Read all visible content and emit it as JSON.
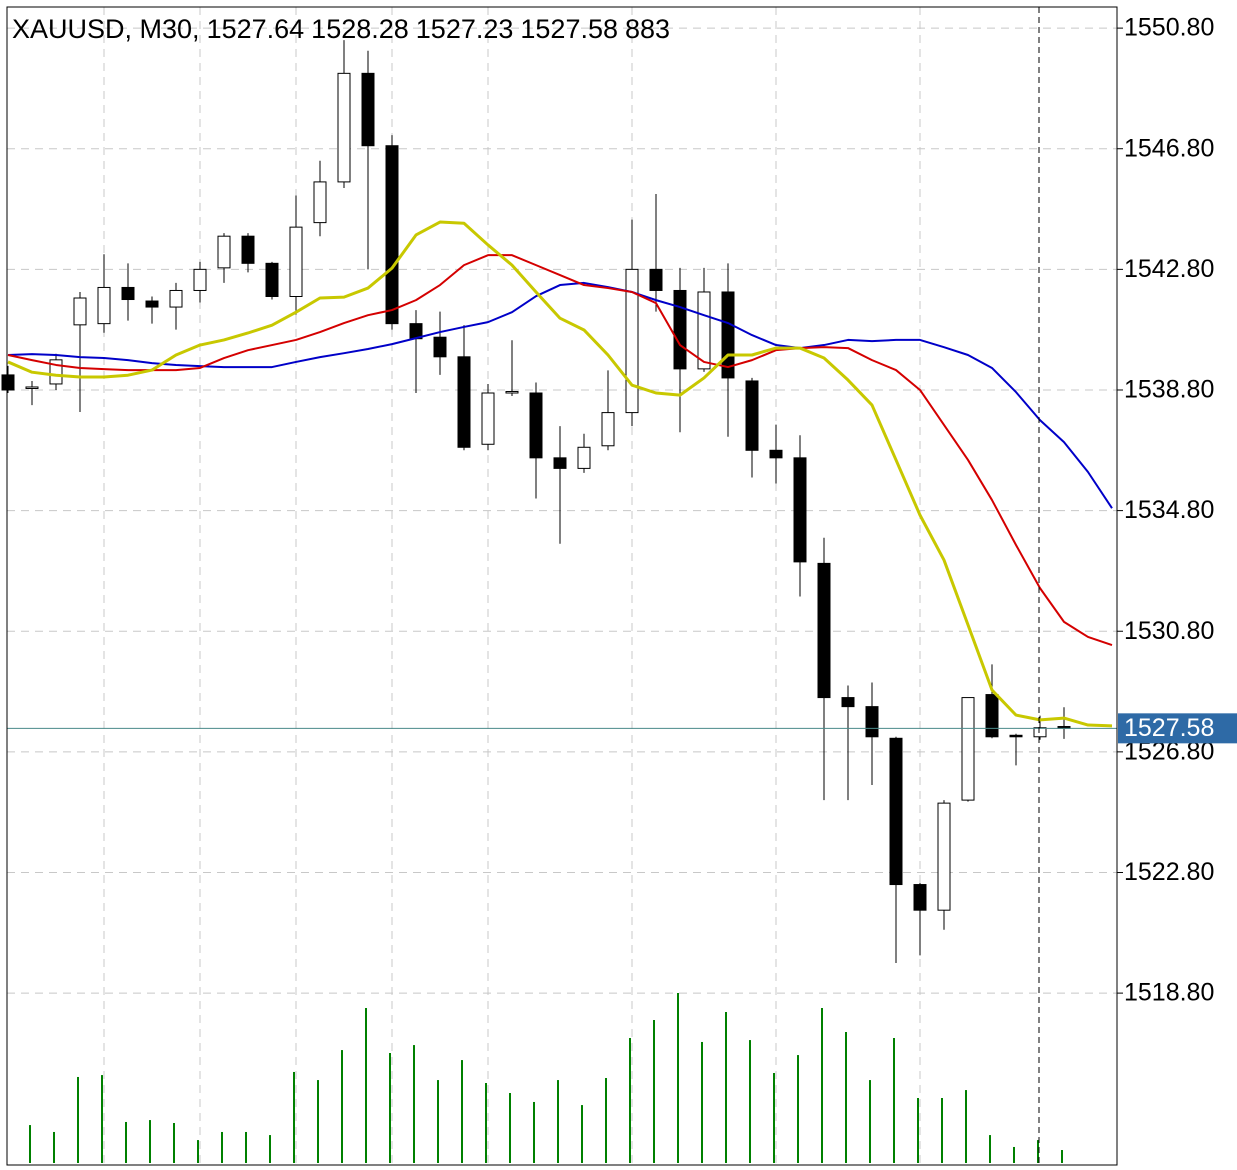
{
  "chart_data": {
    "type": "candlestick",
    "title": "XAUUSD, M30,",
    "open": [
      1539.3,
      1538.85,
      1539.0,
      1540.96,
      1541.0,
      1542.2,
      1541.75,
      1541.55,
      1542.1,
      1542.85,
      1543.9,
      1543.0,
      1541.9,
      1544.35,
      1545.7,
      1549.3,
      1546.9,
      1541.0,
      1540.55,
      1539.9,
      1537.0,
      1538.7,
      1538.7,
      1536.55,
      1536.2,
      1536.95,
      1538.05,
      1542.8,
      1542.1,
      1539.5,
      1542.05,
      1539.1,
      1536.8,
      1536.55,
      1533.05,
      1528.6,
      1528.3,
      1527.25,
      1522.4,
      1521.55,
      1525.2,
      1528.7,
      1527.35,
      1527.3,
      1527.64,
      null,
      null
    ],
    "high": [
      1539.6,
      1539.1,
      1540.0,
      1542.05,
      1543.3,
      1543.0,
      1541.9,
      1542.35,
      1543.05,
      1544.0,
      1544.0,
      1543.05,
      1545.25,
      1546.4,
      1550.4,
      1550.05,
      1547.25,
      1541.45,
      1541.4,
      1540.95,
      1539.0,
      1540.45,
      1539.05,
      1537.6,
      1537.35,
      1539.45,
      1544.45,
      1545.3,
      1542.85,
      1542.85,
      1543.0,
      1539.2,
      1537.65,
      1537.3,
      1533.9,
      1529.0,
      1529.1,
      1527.3,
      1522.45,
      1525.2,
      1528.6,
      1529.7,
      1527.4,
      1528.0,
      1528.28,
      null,
      null
    ],
    "low": [
      1538.7,
      1538.3,
      1538.8,
      1538.07,
      1540.7,
      1541.1,
      1541.0,
      1540.8,
      1541.7,
      1542.35,
      1542.7,
      1541.8,
      1541.3,
      1543.9,
      1545.5,
      1542.8,
      1540.8,
      1538.7,
      1539.3,
      1536.8,
      1536.8,
      1538.6,
      1535.2,
      1533.7,
      1536.05,
      1536.8,
      1537.6,
      1541.4,
      1537.4,
      1539.4,
      1537.25,
      1535.9,
      1535.7,
      1531.95,
      1525.2,
      1525.2,
      1525.7,
      1519.8,
      1520.05,
      1520.9,
      1525.15,
      1527.25,
      1526.35,
      1527.2,
      1527.23,
      null,
      null
    ],
    "close": [
      1538.8,
      1538.9,
      1539.8,
      1541.85,
      1542.2,
      1541.8,
      1541.55,
      1542.1,
      1542.8,
      1543.9,
      1543.0,
      1541.9,
      1544.2,
      1545.7,
      1549.3,
      1546.9,
      1541.0,
      1540.5,
      1539.9,
      1536.9,
      1538.7,
      1538.75,
      1536.55,
      1536.2,
      1536.9,
      1538.05,
      1542.8,
      1542.1,
      1539.5,
      1542.05,
      1539.2,
      1536.8,
      1536.55,
      1533.1,
      1528.6,
      1528.3,
      1527.3,
      1522.4,
      1521.55,
      1525.1,
      1528.6,
      1527.3,
      1527.3,
      1527.6,
      1527.58,
      null,
      null
    ],
    "volume": [
      null,
      2580,
      2110,
      5850,
      5980,
      2790,
      2920,
      2720,
      1560,
      2110,
      2110,
      1900,
      6190,
      5640,
      7680,
      10540,
      7480,
      8020,
      5640,
      7000,
      5440,
      4760,
      4150,
      5640,
      3940,
      5780,
      8500,
      9720,
      11560,
      8230,
      10270,
      8360,
      6120,
      7340,
      10540,
      8910,
      5640,
      8500,
      4420,
      4420,
      4960,
      1900,
      1090,
      1560,
      883,
      null,
      null
    ],
    "volume_color": "#008000",
    "moving_averages": [
      {
        "color": "#0000c8",
        "values": [
          1539.96,
          1539.99,
          1539.96,
          1539.89,
          1539.86,
          1539.79,
          1539.69,
          1539.63,
          1539.59,
          1539.56,
          1539.56,
          1539.56,
          1539.73,
          1539.89,
          1540.02,
          1540.16,
          1540.32,
          1540.52,
          1540.72,
          1540.89,
          1541.05,
          1541.38,
          1541.91,
          1542.28,
          1542.35,
          1542.21,
          1542.05,
          1541.78,
          1541.55,
          1541.28,
          1541.02,
          1540.62,
          1540.29,
          1540.19,
          1540.29,
          1540.46,
          1540.42,
          1540.46,
          1540.46,
          1540.22,
          1539.96,
          1539.53,
          1538.73,
          1537.8,
          1537.07,
          1536.08,
          1534.88
        ]
      },
      {
        "color": "#d40000",
        "values": [
          1539.96,
          1539.79,
          1539.63,
          1539.53,
          1539.49,
          1539.46,
          1539.46,
          1539.46,
          1539.53,
          1539.86,
          1540.12,
          1540.29,
          1540.46,
          1540.72,
          1541.02,
          1541.28,
          1541.45,
          1541.78,
          1542.28,
          1542.94,
          1543.27,
          1543.27,
          1542.94,
          1542.61,
          1542.28,
          1542.18,
          1542.05,
          1541.68,
          1540.29,
          1539.73,
          1539.56,
          1539.79,
          1540.12,
          1540.19,
          1540.22,
          1540.19,
          1539.79,
          1539.46,
          1538.8,
          1537.64,
          1536.48,
          1535.15,
          1533.66,
          1532.23,
          1531.11,
          1530.61,
          1530.34
        ]
      },
      {
        "color": "#c8c800",
        "values": [
          1539.73,
          1539.39,
          1539.29,
          1539.23,
          1539.23,
          1539.29,
          1539.46,
          1539.96,
          1540.29,
          1540.46,
          1540.69,
          1540.95,
          1541.38,
          1541.85,
          1541.88,
          1542.18,
          1542.84,
          1543.94,
          1544.37,
          1544.33,
          1543.61,
          1542.94,
          1542.05,
          1541.18,
          1540.79,
          1539.96,
          1538.96,
          1538.7,
          1538.63,
          1539.2,
          1539.96,
          1539.96,
          1540.19,
          1540.19,
          1539.86,
          1539.13,
          1538.3,
          1536.48,
          1534.65,
          1533.16,
          1531.01,
          1528.85,
          1528.02,
          1527.86,
          1527.92,
          1527.69,
          1527.66
        ]
      }
    ],
    "ylim": [
      1513.1,
      1551.5
    ],
    "yticks": [
      {
        "value": 1518.8,
        "label": "1518.80"
      },
      {
        "value": 1522.8,
        "label": "1522.80"
      },
      {
        "value": 1526.8,
        "label": "1526.80"
      },
      {
        "value": 1530.8,
        "label": "1530.80"
      },
      {
        "value": 1534.8,
        "label": "1534.80"
      },
      {
        "value": 1538.8,
        "label": "1538.80"
      },
      {
        "value": 1542.8,
        "label": "1542.80"
      },
      {
        "value": 1546.8,
        "label": "1546.80"
      },
      {
        "value": 1550.8,
        "label": "1550.80"
      }
    ],
    "grid": true,
    "price_line_color": "#4a8a8a",
    "price_label_color": "#2e6aa6"
  }
}
